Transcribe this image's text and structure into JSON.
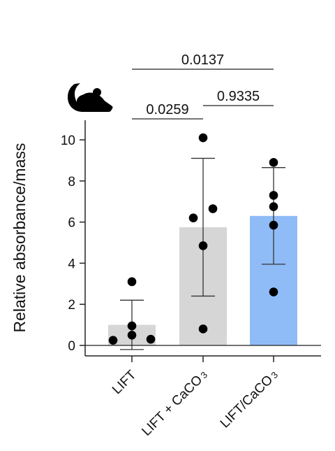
{
  "chart_data": {
    "type": "bar",
    "ylabel": "Relative absorbance/mass",
    "ylim": [
      -0.5,
      11
    ],
    "yticks": [
      0,
      2,
      4,
      6,
      8,
      10
    ],
    "icon": "mouse-icon",
    "categories": [
      {
        "label": "LIFT",
        "sub": ""
      },
      {
        "label": "LIFT + CaCO",
        "sub": "3"
      },
      {
        "label": "LIFT/CaCO",
        "sub": "3"
      }
    ],
    "values": [
      1.0,
      5.75,
      6.3
    ],
    "error_high": [
      2.2,
      9.1,
      8.65
    ],
    "error_low": [
      -0.2,
      2.4,
      3.95
    ],
    "points": [
      [
        3.1,
        0.95,
        0.5,
        0.25,
        0.3
      ],
      [
        10.1,
        6.2,
        6.65,
        4.85,
        0.8
      ],
      [
        8.9,
        7.3,
        6.75,
        5.85,
        2.6
      ]
    ],
    "bar_colors": [
      "#d6d6d6",
      "#d6d6d6",
      "#8fbcf7"
    ],
    "comparisons": [
      {
        "from": 0,
        "to": 1,
        "p": "0.0259"
      },
      {
        "from": 1,
        "to": 2,
        "p": "0.9335"
      },
      {
        "from": 0,
        "to": 2,
        "p": "0.0137"
      }
    ]
  }
}
